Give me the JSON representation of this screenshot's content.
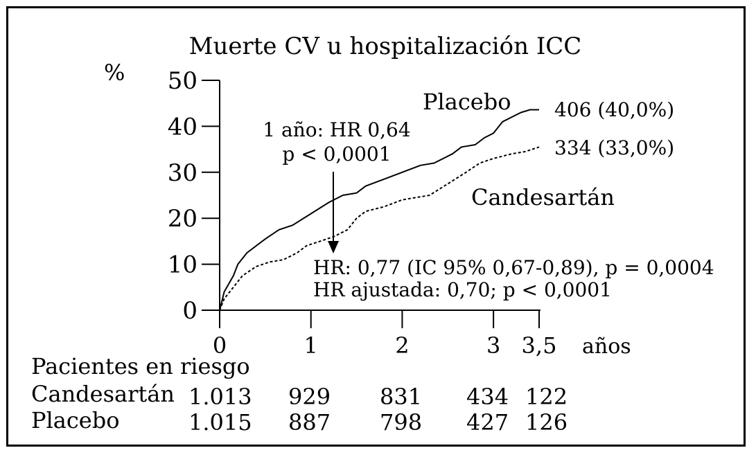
{
  "chart_data": {
    "type": "line",
    "title": "Muerte CV u hospitalización ICC",
    "ylabel": "%",
    "xlabel": "años",
    "xlim": [
      0,
      3.5
    ],
    "ylim": [
      0,
      50
    ],
    "x_ticks": [
      0,
      1,
      2,
      3,
      3.5
    ],
    "x_tick_labels": [
      "0",
      "1",
      "2",
      "3",
      "3,5"
    ],
    "y_ticks": [
      0,
      10,
      20,
      30,
      40,
      50
    ],
    "y_tick_labels": [
      "0",
      "10",
      "20",
      "30",
      "40",
      "50"
    ],
    "grid": false,
    "series": [
      {
        "name": "Placebo",
        "style": "solid",
        "end_label": "406 (40,0%)",
        "points": [
          [
            0,
            0
          ],
          [
            0.05,
            4
          ],
          [
            0.15,
            7.5
          ],
          [
            0.2,
            10
          ],
          [
            0.3,
            12.5
          ],
          [
            0.5,
            15.5
          ],
          [
            0.65,
            17.5
          ],
          [
            0.8,
            18.5
          ],
          [
            1.0,
            21
          ],
          [
            1.2,
            23.5
          ],
          [
            1.35,
            25
          ],
          [
            1.5,
            25.5
          ],
          [
            1.6,
            27
          ],
          [
            1.8,
            28.5
          ],
          [
            2.0,
            30
          ],
          [
            2.2,
            31.5
          ],
          [
            2.35,
            32
          ],
          [
            2.45,
            33
          ],
          [
            2.55,
            34
          ],
          [
            2.65,
            35.5
          ],
          [
            2.8,
            36
          ],
          [
            2.9,
            37.5
          ],
          [
            3.0,
            38.5
          ],
          [
            3.1,
            41
          ],
          [
            3.2,
            42
          ],
          [
            3.3,
            43
          ],
          [
            3.4,
            43.6
          ],
          [
            3.5,
            43.6
          ]
        ]
      },
      {
        "name": "Candesartán",
        "style": "dashed",
        "end_label": "334 (33,0%)",
        "points": [
          [
            0,
            0
          ],
          [
            0.05,
            2.5
          ],
          [
            0.15,
            5
          ],
          [
            0.25,
            7.5
          ],
          [
            0.4,
            9.5
          ],
          [
            0.55,
            10.5
          ],
          [
            0.7,
            11
          ],
          [
            0.85,
            12.5
          ],
          [
            0.95,
            14
          ],
          [
            1.1,
            15
          ],
          [
            1.25,
            16
          ],
          [
            1.4,
            17.5
          ],
          [
            1.5,
            20
          ],
          [
            1.6,
            21.5
          ],
          [
            1.8,
            22.5
          ],
          [
            2.0,
            24
          ],
          [
            2.15,
            24.5
          ],
          [
            2.3,
            25
          ],
          [
            2.5,
            27.5
          ],
          [
            2.7,
            30
          ],
          [
            2.85,
            32
          ],
          [
            3.0,
            33
          ],
          [
            3.2,
            34
          ],
          [
            3.35,
            34.5
          ],
          [
            3.5,
            35.5
          ]
        ]
      }
    ],
    "annotations": {
      "placebo_label": "Placebo",
      "candesartan_label": "Candesartán",
      "one_year_line1": "1 año: HR 0,64",
      "one_year_line2": "p < 0,0001",
      "hr_line1": "HR: 0,77 (IC 95% 0,67-0,89), p = 0,0004",
      "hr_line2": "HR ajustada: 0,70; p < 0,0001"
    },
    "risk_table": {
      "title": "Pacientes en riesgo",
      "rows": [
        {
          "label": "Candesartán",
          "values": [
            "1.013",
            "929",
            "831",
            "434",
            "122"
          ]
        },
        {
          "label": "Placebo",
          "values": [
            "1.015",
            "887",
            "798",
            "427",
            "126"
          ]
        }
      ]
    }
  }
}
